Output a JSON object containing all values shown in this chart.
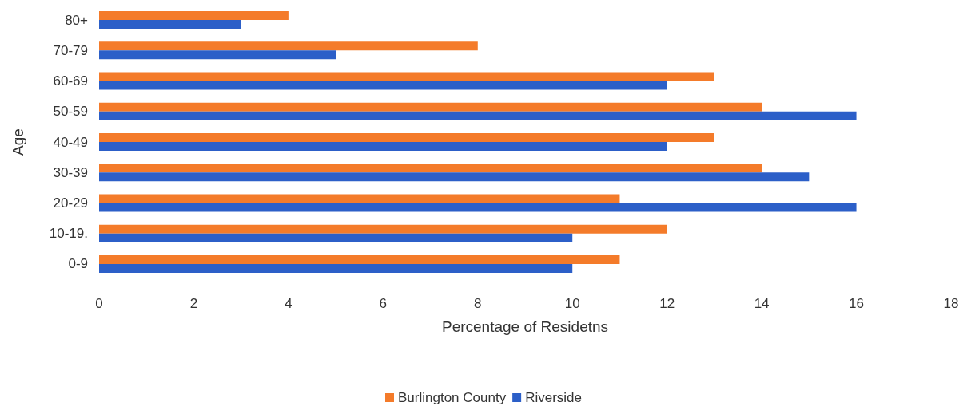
{
  "chart_data": {
    "type": "bar",
    "orientation": "horizontal",
    "xlabel": "Percentage of Residetns",
    "ylabel": "Age",
    "categories": [
      "80+",
      "70-79",
      "60-69",
      "50-59",
      "40-49",
      "30-39",
      "20-29",
      "10-19.",
      "0-9"
    ],
    "series": [
      {
        "name": "Burlington County",
        "color": "#f47b2a",
        "values": [
          4,
          8,
          13,
          14,
          13,
          14,
          11,
          12,
          11
        ]
      },
      {
        "name": "Riverside",
        "color": "#2c5fc8",
        "values": [
          3,
          5,
          12,
          16,
          12,
          15,
          16,
          10,
          10
        ]
      }
    ],
    "xlim": [
      0,
      18
    ],
    "xticks": [
      0,
      2,
      4,
      6,
      8,
      10,
      12,
      14,
      16,
      18
    ],
    "grid": false,
    "legend": "bottom"
  }
}
